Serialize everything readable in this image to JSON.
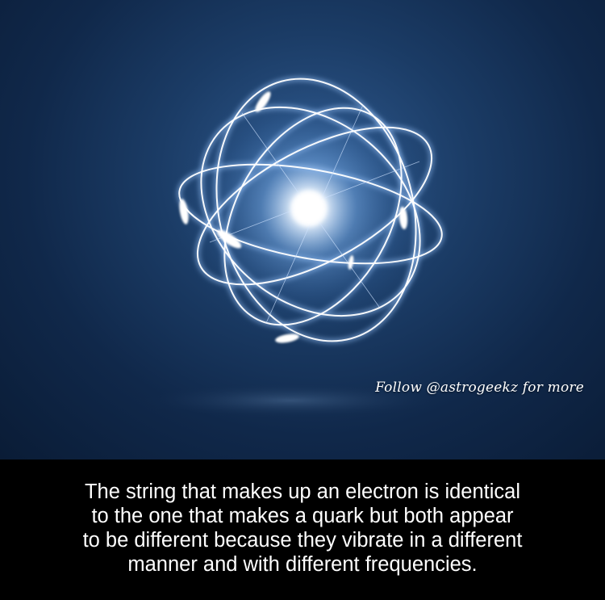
{
  "image": {
    "subject": "glowing-atom-orbits",
    "background_color": "#10284a",
    "glow_color": "#ffffff"
  },
  "watermark": {
    "text": "Follow @astrogeekz for more"
  },
  "caption": {
    "lines": [
      "The string that makes up an electron is identical",
      "to the one that makes a quark but both appear",
      "to be different because they vibrate in a different",
      "manner and with different frequencies."
    ]
  }
}
